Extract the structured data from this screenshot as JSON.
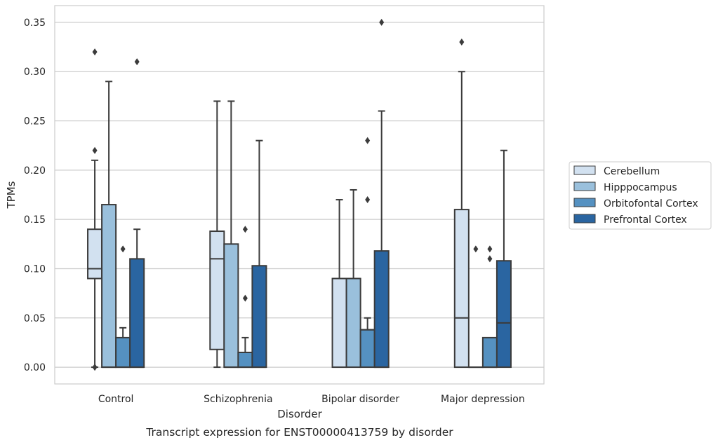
{
  "chart_data": {
    "type": "box",
    "caption": "Transcript expression for ENST00000413759 by disorder",
    "xlabel": "Disorder",
    "ylabel": "TPMs",
    "ylim": [
      -0.017,
      0.367
    ],
    "yticks": [
      "0.00",
      "0.05",
      "0.10",
      "0.15",
      "0.20",
      "0.25",
      "0.30",
      "0.35"
    ],
    "grid": "horizontal",
    "legend_position": "right",
    "categories": [
      "Control",
      "Schizophrenia",
      "Bipolar disorder",
      "Major depression"
    ],
    "series": [
      {
        "name": "Cerebellum",
        "color": "#d2e1f0",
        "boxes": [
          {
            "whisker_low": 0.0,
            "q1": 0.09,
            "median": 0.1,
            "q3": 0.14,
            "whisker_high": 0.21,
            "outliers": [
              0.32,
              0.22,
              0.0,
              0.0
            ]
          },
          {
            "whisker_low": 0.0,
            "q1": 0.018,
            "median": 0.11,
            "q3": 0.138,
            "whisker_high": 0.27,
            "outliers": []
          },
          {
            "whisker_low": 0.0,
            "q1": 0.0,
            "median": 0.09,
            "q3": 0.09,
            "whisker_high": 0.17,
            "outliers": []
          },
          {
            "whisker_low": 0.0,
            "q1": 0.0,
            "median": 0.05,
            "q3": 0.16,
            "whisker_high": 0.3,
            "outliers": [
              0.33
            ]
          }
        ]
      },
      {
        "name": "Hipppocampus",
        "color": "#9ac0dc",
        "boxes": [
          {
            "whisker_low": 0.0,
            "q1": 0.0,
            "median": 0.0,
            "q3": 0.165,
            "whisker_high": 0.29,
            "outliers": []
          },
          {
            "whisker_low": 0.0,
            "q1": 0.0,
            "median": 0.0,
            "q3": 0.125,
            "whisker_high": 0.27,
            "outliers": []
          },
          {
            "whisker_low": 0.0,
            "q1": 0.0,
            "median": 0.09,
            "q3": 0.09,
            "whisker_high": 0.18,
            "outliers": []
          },
          {
            "whisker_low": 0.0,
            "q1": 0.0,
            "median": 0.0,
            "q3": 0.0,
            "whisker_high": 0.0,
            "outliers": [
              0.12
            ]
          }
        ]
      },
      {
        "name": "Orbitofontal Cortex",
        "color": "#5591c1",
        "boxes": [
          {
            "whisker_low": 0.0,
            "q1": 0.0,
            "median": 0.0,
            "q3": 0.03,
            "whisker_high": 0.04,
            "outliers": [
              0.12
            ]
          },
          {
            "whisker_low": 0.0,
            "q1": 0.0,
            "median": 0.0,
            "q3": 0.015,
            "whisker_high": 0.03,
            "outliers": [
              0.14,
              0.07
            ]
          },
          {
            "whisker_low": 0.0,
            "q1": 0.0,
            "median": 0.038,
            "q3": 0.038,
            "whisker_high": 0.05,
            "outliers": [
              0.23,
              0.17
            ]
          },
          {
            "whisker_low": 0.0,
            "q1": 0.0,
            "median": 0.0,
            "q3": 0.03,
            "whisker_high": 0.03,
            "outliers": [
              0.12,
              0.11
            ]
          }
        ]
      },
      {
        "name": "Prefrontal Cortex",
        "color": "#2a65a1",
        "boxes": [
          {
            "whisker_low": 0.0,
            "q1": 0.0,
            "median": 0.0,
            "q3": 0.11,
            "whisker_high": 0.14,
            "outliers": [
              0.31
            ]
          },
          {
            "whisker_low": 0.0,
            "q1": 0.0,
            "median": 0.0,
            "q3": 0.103,
            "whisker_high": 0.23,
            "outliers": []
          },
          {
            "whisker_low": 0.0,
            "q1": 0.0,
            "median": 0.0,
            "q3": 0.118,
            "whisker_high": 0.26,
            "outliers": [
              0.35
            ]
          },
          {
            "whisker_low": 0.0,
            "q1": 0.0,
            "median": 0.045,
            "q3": 0.108,
            "whisker_high": 0.22,
            "outliers": []
          }
        ]
      }
    ]
  }
}
